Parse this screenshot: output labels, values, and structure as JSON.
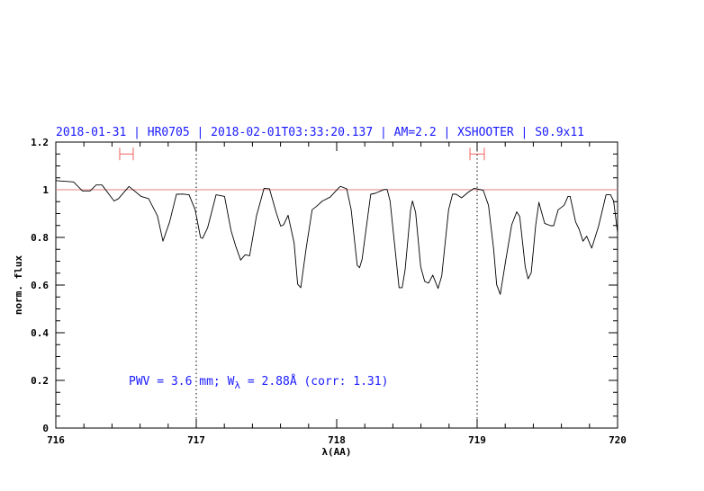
{
  "chart_data": {
    "type": "line",
    "title": "2018-01-31 | HR0705 | 2018-02-01T03:33:20.137 | AM=2.2 | XSHOOTER | S0.9x11",
    "xlabel": "λ(AA)",
    "ylabel": "norm. flux",
    "xlim": [
      716,
      720
    ],
    "ylim": [
      0,
      1.2
    ],
    "xticks": [
      716,
      717,
      718,
      719,
      720
    ],
    "xtick_labels": [
      "716",
      "717",
      "718",
      "719",
      "720"
    ],
    "yticks": [
      0,
      0.2,
      0.4,
      0.6,
      0.8,
      1,
      1.2
    ],
    "ytick_labels": [
      "0",
      "0.2",
      "0.4",
      "0.6",
      "0.8",
      "1",
      "1.2"
    ],
    "x_minor_step": 0.2,
    "y_minor_step": 0.05,
    "grid": false,
    "reference_line": {
      "y": 1,
      "color": "#e08080"
    },
    "vertical_markers": [
      717,
      719
    ],
    "error_bars": [
      {
        "x_min": 716.455,
        "x_max": 716.551,
        "y": 1.15
      },
      {
        "x_min": 718.949,
        "x_max": 719.051,
        "y": 1.15
      }
    ],
    "annotation": {
      "prefix": "PWV = 3.6 mm; W",
      "subscript": "λ",
      "suffix": " = 2.88Å (corr: 1.31)"
    },
    "colors": {
      "title": "#1a1aff",
      "annotation": "#1a1aff",
      "spectrum": "#000000",
      "error_bars": "#f06060"
    },
    "series": [
      {
        "x": [
          716.0,
          716.008,
          716.126,
          716.19,
          716.244,
          716.287,
          716.329,
          716.415,
          716.447,
          716.521,
          716.607,
          716.66,
          716.724,
          716.763,
          716.81,
          716.859,
          716.906,
          716.949,
          716.992,
          717.03,
          717.045,
          717.081,
          717.141,
          717.201,
          717.248,
          717.28,
          717.316,
          717.348,
          717.38,
          717.429,
          717.483,
          717.521,
          717.569,
          717.601,
          717.622,
          717.654,
          717.697,
          717.722,
          717.744,
          717.782,
          717.825,
          717.857,
          717.899,
          717.953,
          718.017,
          718.028,
          718.071,
          718.103,
          718.146,
          718.163,
          718.181,
          718.242,
          718.274,
          718.338,
          718.359,
          718.38,
          718.444,
          718.466,
          718.487,
          718.526,
          718.54,
          718.562,
          718.598,
          718.626,
          718.654,
          718.684,
          718.722,
          718.748,
          718.797,
          718.825,
          718.851,
          718.889,
          718.936,
          718.979,
          719.043,
          719.081,
          719.117,
          719.139,
          719.165,
          719.203,
          719.246,
          719.282,
          719.303,
          719.342,
          719.363,
          719.385,
          719.417,
          719.44,
          719.481,
          719.524,
          719.545,
          719.577,
          719.62,
          719.647,
          719.662,
          719.701,
          719.726,
          719.754,
          719.78,
          719.816,
          719.865,
          719.918,
          719.95,
          719.972,
          719.994,
          720.0
        ],
        "y": [
          1.04,
          1.038,
          1.033,
          0.995,
          0.995,
          1.02,
          1.02,
          0.953,
          0.963,
          1.014,
          0.972,
          0.963,
          0.89,
          0.784,
          0.865,
          0.981,
          0.982,
          0.979,
          0.916,
          0.8,
          0.796,
          0.84,
          0.979,
          0.972,
          0.828,
          0.765,
          0.705,
          0.727,
          0.723,
          0.89,
          1.006,
          1.004,
          0.904,
          0.847,
          0.853,
          0.893,
          0.777,
          0.604,
          0.589,
          0.752,
          0.916,
          0.931,
          0.953,
          0.969,
          1.01,
          1.014,
          1.004,
          0.916,
          0.683,
          0.673,
          0.708,
          0.981,
          0.985,
          1.001,
          1.001,
          0.953,
          0.589,
          0.589,
          0.664,
          0.916,
          0.953,
          0.904,
          0.677,
          0.616,
          0.608,
          0.642,
          0.586,
          0.639,
          0.916,
          0.982,
          0.981,
          0.966,
          0.989,
          1.006,
          0.998,
          0.935,
          0.752,
          0.601,
          0.561,
          0.702,
          0.853,
          0.907,
          0.888,
          0.677,
          0.626,
          0.652,
          0.853,
          0.947,
          0.859,
          0.849,
          0.849,
          0.916,
          0.935,
          0.972,
          0.972,
          0.865,
          0.834,
          0.784,
          0.805,
          0.755,
          0.847,
          0.979,
          0.979,
          0.953,
          0.847,
          0.82
        ]
      }
    ]
  }
}
